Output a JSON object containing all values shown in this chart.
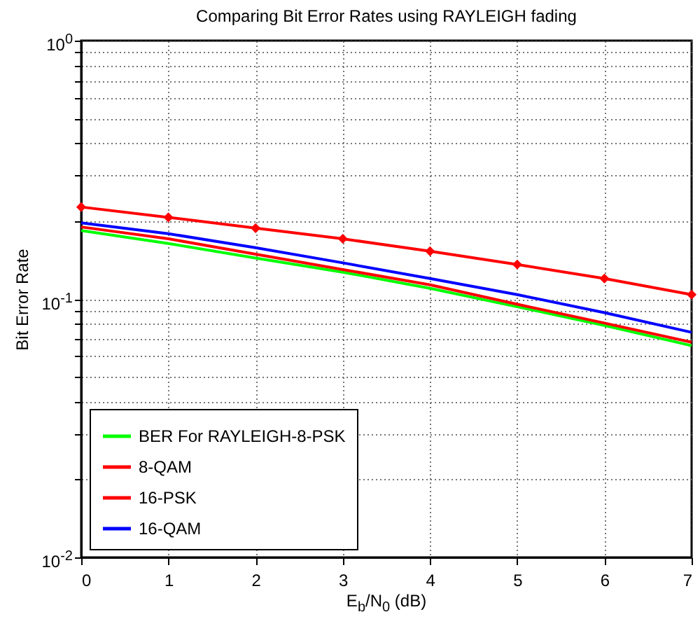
{
  "chart_data": {
    "type": "line",
    "title": "Comparing Bit Error Rates using RAYLEIGH fading",
    "xlabel": "E$_{b}$/N$_{0}$ (dB)",
    "ylabel": "Bit Error Rate",
    "x": [
      0,
      1,
      2,
      3,
      4,
      5,
      6,
      7
    ],
    "series": [
      {
        "name": "BER For RAYLEIGH-8-PSK",
        "color": "#00ff00",
        "marker": "none",
        "values": [
          0.184,
          0.164,
          0.144,
          0.127,
          0.11,
          0.0933,
          0.079,
          0.066
        ]
      },
      {
        "name": "8-QAM",
        "color": "#ff0000",
        "marker": "none",
        "values": [
          0.19,
          0.171,
          0.149,
          0.13,
          0.1135,
          0.0954,
          0.0807,
          0.068
        ]
      },
      {
        "name": "16-PSK",
        "color": "#ff0000",
        "marker": "diamond",
        "values": [
          0.227,
          0.207,
          0.188,
          0.171,
          0.153,
          0.136,
          0.12,
          0.104
        ]
      },
      {
        "name": "16-QAM",
        "color": "#0000ff",
        "marker": "none",
        "values": [
          0.197,
          0.179,
          0.158,
          0.138,
          0.12,
          0.104,
          0.0885,
          0.0743
        ]
      }
    ],
    "log": "y",
    "xlim": [
      0,
      7
    ],
    "ylim": [
      0.01,
      1
    ],
    "xticks": [
      0,
      1,
      2,
      3,
      4,
      5,
      6,
      7
    ],
    "yticks": [
      {
        "value": 0.01,
        "label": "10$^{-2}$"
      },
      {
        "value": 0.02,
        "label": null
      },
      {
        "value": 0.03,
        "label": null
      },
      {
        "value": 0.04,
        "label": null
      },
      {
        "value": 0.05,
        "label": null
      },
      {
        "value": 0.06,
        "label": null
      },
      {
        "value": 0.07,
        "label": null
      },
      {
        "value": 0.08,
        "label": null
      },
      {
        "value": 0.09,
        "label": null
      },
      {
        "value": 0.1,
        "label": "10$^{-1}$"
      },
      {
        "value": 0.2,
        "label": null
      },
      {
        "value": 0.3,
        "label": null
      },
      {
        "value": 0.4,
        "label": null
      },
      {
        "value": 0.5,
        "label": null
      },
      {
        "value": 0.6,
        "label": null
      },
      {
        "value": 0.7,
        "label": null
      },
      {
        "value": 0.8,
        "label": null
      },
      {
        "value": 0.9,
        "label": null
      },
      {
        "value": 1,
        "label": "10$^{0}$"
      }
    ],
    "grid": true,
    "legend": "bottom left",
    "line_style": "solid"
  }
}
